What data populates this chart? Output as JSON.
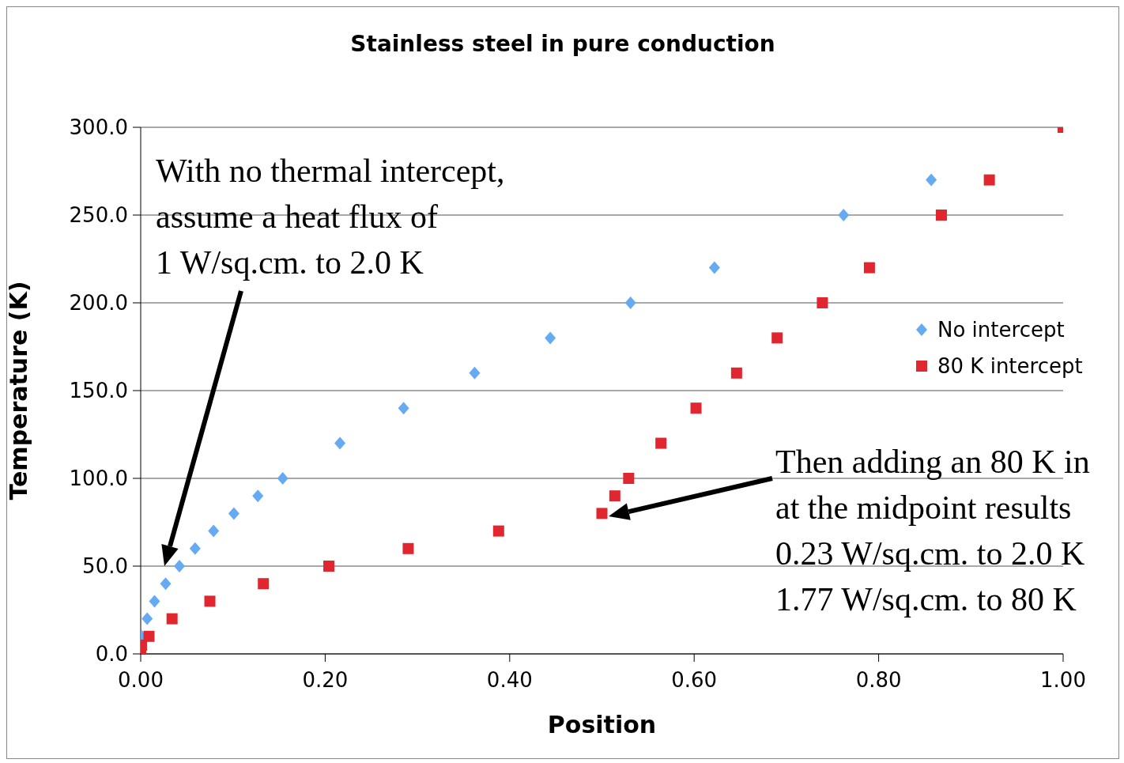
{
  "chart_data": {
    "type": "scatter",
    "title": "Stainless steel in pure conduction",
    "xlabel": "Position",
    "ylabel": "Temperature (K)",
    "xlim": [
      0,
      1
    ],
    "xticks": [
      {
        "value": 0,
        "label": "0.00"
      },
      {
        "value": 0.2,
        "label": "0.20"
      },
      {
        "value": 0.4,
        "label": "0.40"
      },
      {
        "value": 0.6,
        "label": "0.60"
      },
      {
        "value": 0.8,
        "label": "0.80"
      },
      {
        "value": 1,
        "label": "1.00"
      }
    ],
    "ylim": [
      0,
      300
    ],
    "yticks": [
      {
        "value": 0,
        "label": "0.0"
      },
      {
        "value": 50,
        "label": "50.0"
      },
      {
        "value": 100,
        "label": "100.0"
      },
      {
        "value": 150,
        "label": "150.0"
      },
      {
        "value": 200,
        "label": "200.0"
      },
      {
        "value": 250,
        "label": "250.0"
      },
      {
        "value": 300,
        "label": "300.0"
      }
    ],
    "grid": "y",
    "legend": "right",
    "series": [
      {
        "name": "No intercept",
        "color": "#66aaf2",
        "marker": "diamond",
        "x": [
          0.001,
          0.007,
          0.015,
          0.027,
          0.042,
          0.059,
          0.079,
          0.101,
          0.127,
          0.154,
          0.216,
          0.285,
          0.362,
          0.444,
          0.531,
          0.622,
          0.762,
          0.857
        ],
        "values": [
          10,
          20,
          30,
          40,
          50,
          60,
          70,
          80,
          90,
          100,
          120,
          140,
          160,
          180,
          200,
          220,
          250,
          270
        ]
      },
      {
        "name": "80 K intercept",
        "color": "#e0262e",
        "marker": "square",
        "x": [
          0,
          0.001,
          0.009,
          0.034,
          0.075,
          0.133,
          0.204,
          0.29,
          0.388,
          0.5,
          0.514,
          0.529,
          0.564,
          0.602,
          0.646,
          0.69,
          0.739,
          0.79,
          0.868,
          0.92,
          1.0
        ],
        "values": [
          2,
          5,
          10,
          20,
          30,
          40,
          50,
          60,
          70,
          80,
          90,
          100,
          120,
          140,
          160,
          180,
          200,
          220,
          250,
          270,
          300
        ]
      }
    ],
    "annotations": [
      "With no thermal intercept,\nassume a heat flux of\n1 W/sq.cm. to 2.0 K",
      "Then adding an 80 K in\nat the midpoint results\n0.23 W/sq.cm. to 2.0 K\n1.77 W/sq.cm. to 80 K"
    ]
  }
}
